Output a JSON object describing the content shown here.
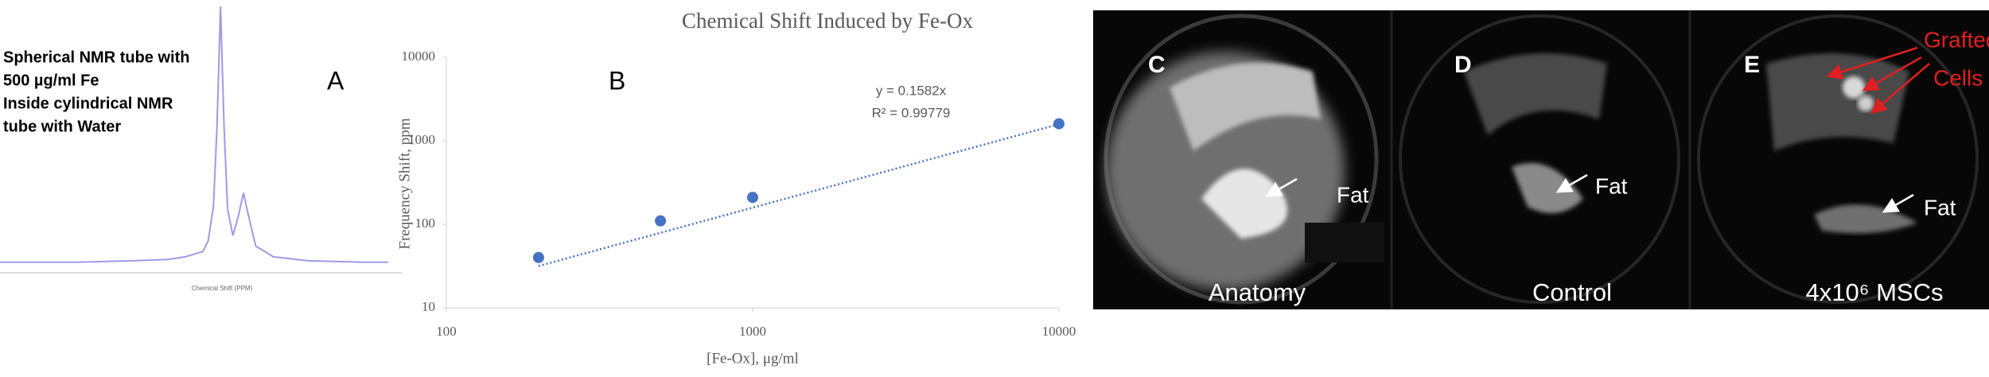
{
  "chart_data": [
    {
      "type": "line",
      "panel_label": "A",
      "notes": [
        "Spherical NMR tube with",
        "500 µg/ml Fe",
        "Inside cylindrical NMR",
        "tube with Water"
      ],
      "xlabel": "Chemical Shift (PPM)",
      "x": [
        12.5,
        8,
        5,
        3,
        2,
        1,
        0.7,
        0.4,
        0.2,
        0,
        -0.2,
        -0.4,
        -0.7,
        -1,
        -1.3,
        -1.6,
        -2,
        -3,
        -5,
        -8,
        -9.5
      ],
      "values": [
        4,
        4,
        4.5,
        5,
        6,
        8,
        12,
        25,
        55,
        100,
        55,
        24,
        14,
        21,
        30,
        21,
        10,
        6,
        4.5,
        4,
        4
      ],
      "xlim": [
        12.5,
        -10.5
      ],
      "ylim": [
        0,
        100
      ],
      "color": "#9b9be8"
    },
    {
      "type": "scatter",
      "panel_label": "B",
      "title": "Chemical Shift Induced by Fe-Ox",
      "xlabel": "[Fe-Ox], μg/ml",
      "ylabel": "Frequency Shift, ppm",
      "x": [
        200,
        500,
        1000,
        10000
      ],
      "values": [
        40,
        110,
        210,
        1600
      ],
      "color": "#4472c4",
      "trendline": {
        "x": [
          200,
          10000
        ],
        "values": [
          31.64,
          1582
        ],
        "color": "#4472c4",
        "style": "dotted"
      },
      "annotations": [
        "y = 0.1582x",
        "R² = 0.99779"
      ],
      "xlim": [
        100,
        10000
      ],
      "ylim": [
        10,
        10000
      ],
      "xticks": [
        100,
        1000,
        10000
      ],
      "yticks": [
        10,
        100,
        1000,
        10000
      ],
      "log_x": true,
      "log_y": true
    }
  ],
  "images": [
    {
      "label": "C",
      "marker": "Fat",
      "caption": "Anatomy"
    },
    {
      "label": "D",
      "marker": "Fat",
      "caption": "Control"
    },
    {
      "label": "E",
      "marker": "Fat",
      "caption": "4x10⁶ MSCs",
      "callout": [
        "Grafted",
        "Cells"
      ]
    }
  ]
}
